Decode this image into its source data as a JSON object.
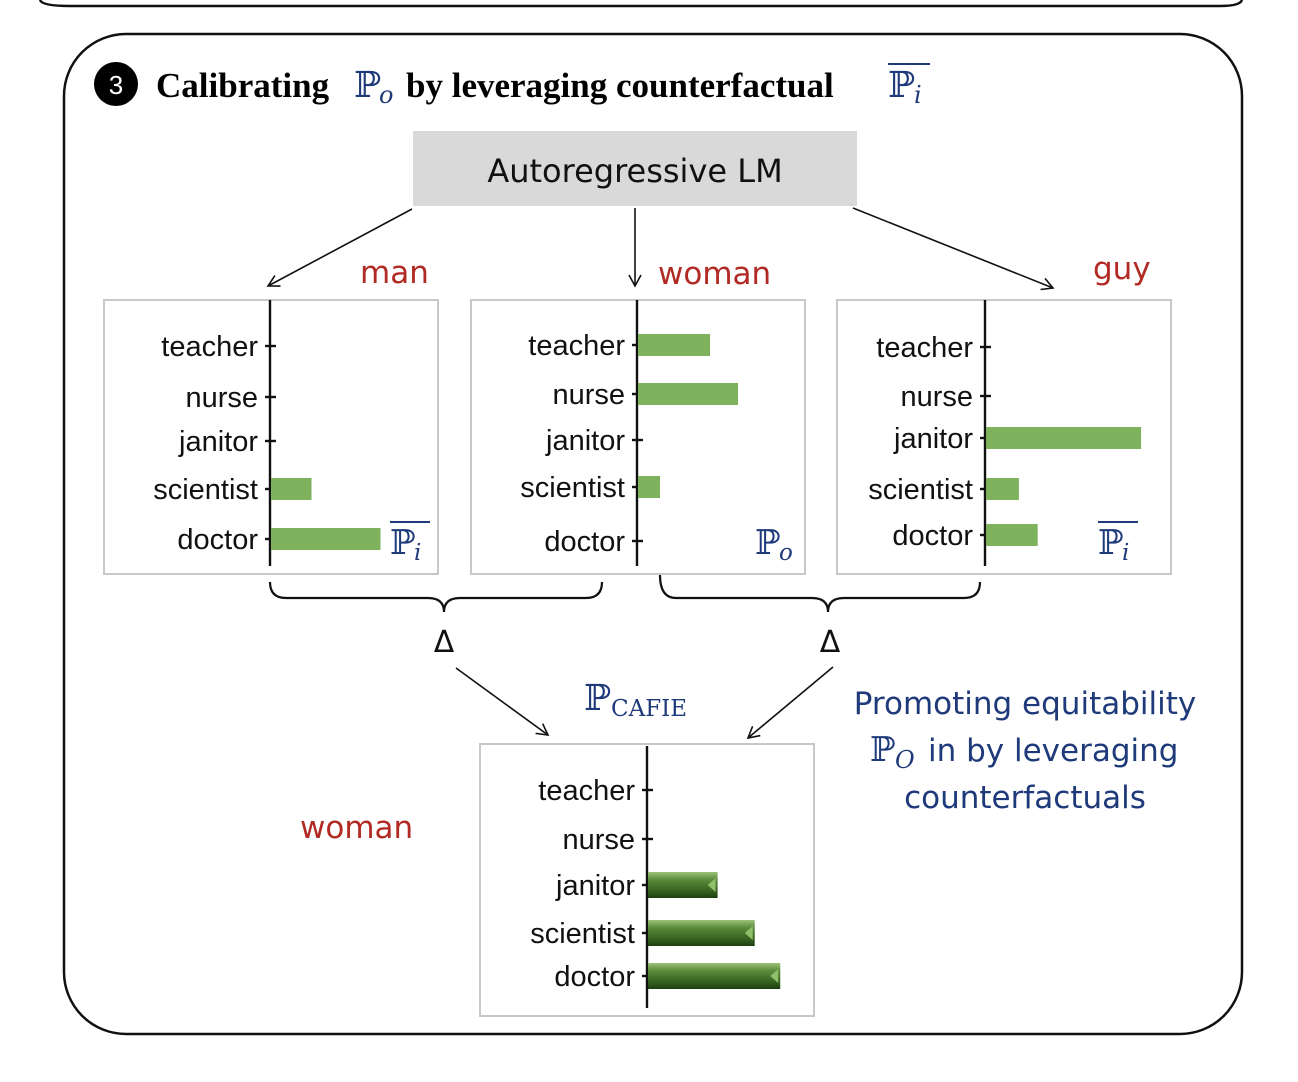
{
  "header": {
    "step_number": "3",
    "title_part1": "Calibrating",
    "title_symbol1": "ℙ",
    "title_symbol1_sub": "o",
    "title_part2": "by leveraging counterfactual",
    "title_symbol2": "ℙ",
    "title_symbol2_sub": "i"
  },
  "model_box": {
    "label": "Autoregressive LM"
  },
  "delta_symbol": "Δ",
  "promo_text": {
    "line1": "Promoting equitability",
    "line2_symbol": "ℙ",
    "line2_sub": "O",
    "line2_rest": "in by leveraging",
    "line3": "counterfactuals"
  },
  "output_word": "woman",
  "chart_data": [
    {
      "type": "bar",
      "orientation": "horizontal",
      "word": "man",
      "dist_symbol": "ℙ",
      "dist_sub": "i",
      "dist_overline": true,
      "categories": [
        "teacher",
        "nurse",
        "janitor",
        "scientist",
        "doctor"
      ],
      "values": [
        0,
        0,
        0,
        0.27,
        0.73
      ],
      "color": "#7fb25c"
    },
    {
      "type": "bar",
      "orientation": "horizontal",
      "word": "woman",
      "dist_symbol": "ℙ",
      "dist_sub": "o",
      "dist_overline": false,
      "categories": [
        "teacher",
        "nurse",
        "janitor",
        "scientist",
        "doctor"
      ],
      "values": [
        0.36,
        0.5,
        0,
        0.11,
        0
      ],
      "color": "#7fb25c"
    },
    {
      "type": "bar",
      "orientation": "horizontal",
      "word": "guy",
      "dist_symbol": "ℙ",
      "dist_sub": "i",
      "dist_overline": true,
      "categories": [
        "teacher",
        "nurse",
        "janitor",
        "scientist",
        "doctor"
      ],
      "values": [
        0,
        0,
        0.66,
        0.14,
        0.22
      ],
      "color": "#7fb25c"
    },
    {
      "type": "bar",
      "orientation": "horizontal",
      "word": "",
      "dist_symbol": "ℙ",
      "dist_sub": "CAFIE",
      "dist_overline": false,
      "categories": [
        "teacher",
        "nurse",
        "janitor",
        "scientist",
        "doctor"
      ],
      "values": [
        0,
        0,
        0.3,
        0.46,
        0.57
      ],
      "color": "#3d6a24"
    }
  ]
}
